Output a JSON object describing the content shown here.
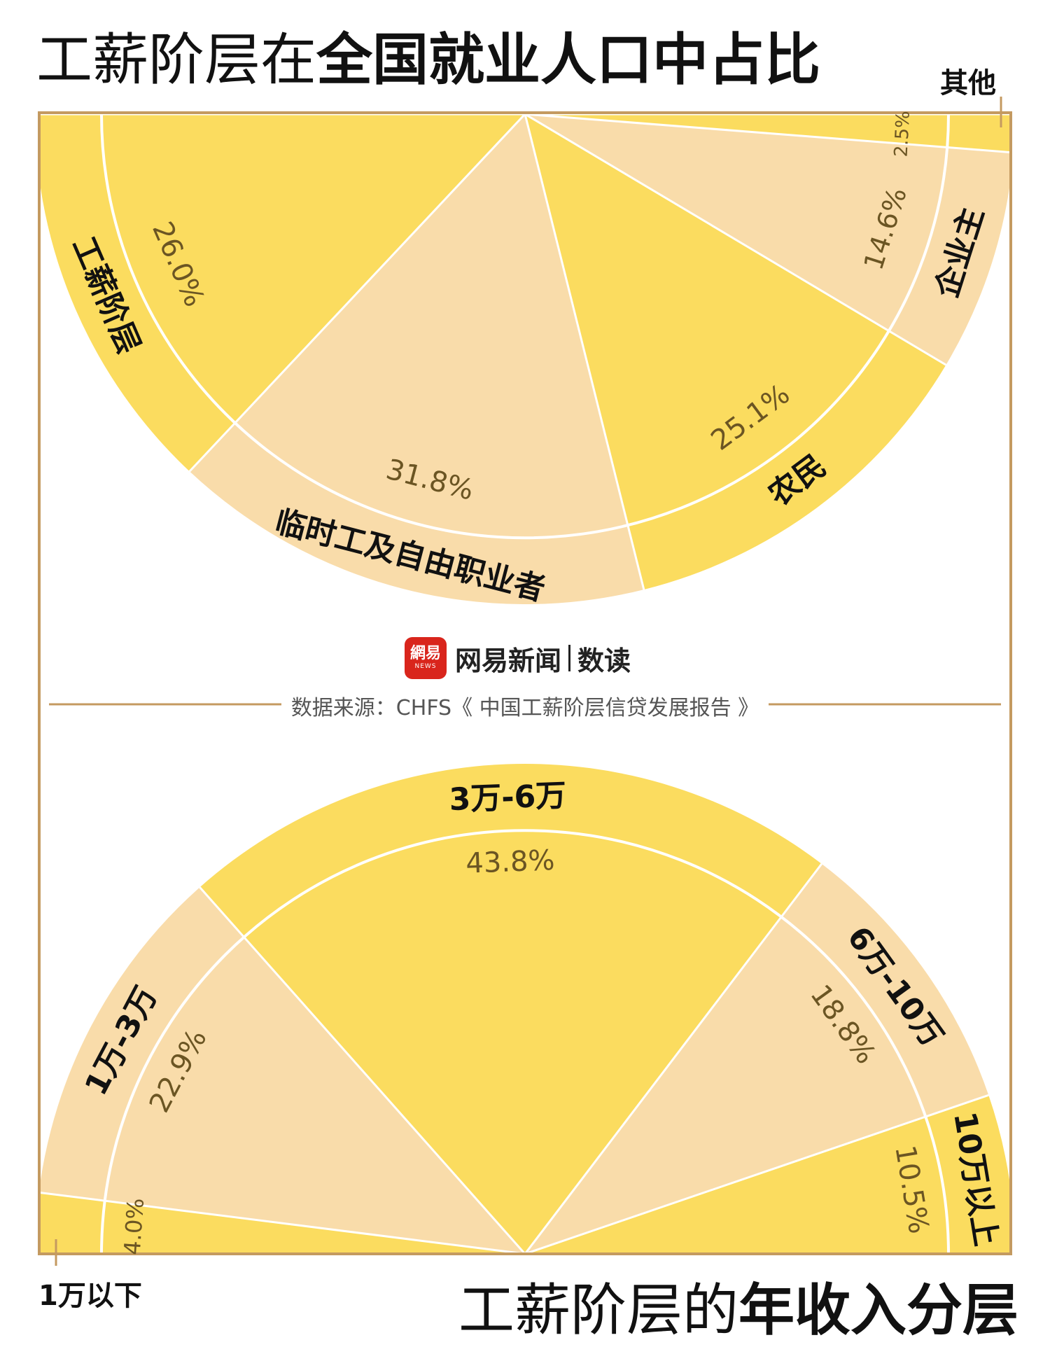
{
  "header": {
    "title_light": "工薪阶层在",
    "title_bold": "全国就业人口中占比"
  },
  "footer": {
    "title_light": "工薪阶层的",
    "title_bold": "年收入分层"
  },
  "logo": {
    "mark_text": "網易",
    "mark_sub": "NEWS",
    "name": "网易新闻",
    "sub": "数读"
  },
  "source": "数据来源：CHFS《 中国工薪阶层信贷发展报告 》",
  "colors": {
    "yellow": "#fbdc5f",
    "beige": "#f9dcaa",
    "frame": "#c49a60",
    "pct_text": "#6b5523"
  },
  "chart_data": [
    {
      "type": "pie",
      "title": "工薪阶层在全国就业人口中占比",
      "slices": [
        {
          "label": "工薪阶层",
          "value": 26.0,
          "pct_label": "26.0%"
        },
        {
          "label": "临时工及自由职业者",
          "value": 31.8,
          "pct_label": "31.8%"
        },
        {
          "label": "农民",
          "value": 25.1,
          "pct_label": "25.1%"
        },
        {
          "label": "企业主",
          "value": 14.6,
          "pct_label": "14.6%"
        },
        {
          "label": "其他",
          "value": 2.5,
          "pct_label": "2.5%"
        }
      ]
    },
    {
      "type": "pie",
      "title": "工薪阶层的年收入分层",
      "slices": [
        {
          "label": "1万以下",
          "value": 4.0,
          "pct_label": "4.0%"
        },
        {
          "label": "1万-3万",
          "value": 22.9,
          "pct_label": "22.9%"
        },
        {
          "label": "3万-6万",
          "value": 43.8,
          "pct_label": "43.8%"
        },
        {
          "label": "6万-10万",
          "value": 18.8,
          "pct_label": "18.8%"
        },
        {
          "label": "10万以上",
          "value": 10.5,
          "pct_label": "10.5%"
        }
      ]
    }
  ]
}
